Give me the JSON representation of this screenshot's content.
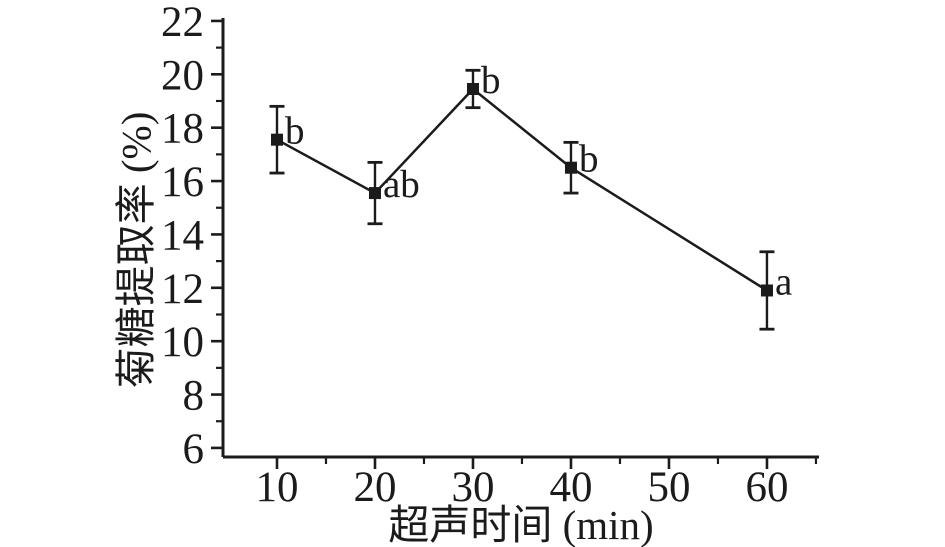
{
  "chart_data": {
    "type": "line",
    "title": "",
    "xlabel": "超声时间 (min)",
    "ylabel": "菊糖提取率 (%)",
    "x": [
      10,
      20,
      30,
      40,
      60
    ],
    "y": [
      17.55,
      15.55,
      19.45,
      16.5,
      11.9
    ],
    "yerr": [
      1.25,
      1.15,
      0.7,
      0.95,
      1.45
    ],
    "point_labels": [
      "b",
      "ab",
      "b",
      "b",
      "a"
    ],
    "xlim": [
      4.49,
      65.31
    ],
    "ylim": [
      5.66,
      22.11
    ],
    "x_major_ticks": [
      10,
      20,
      30,
      40,
      50,
      60
    ],
    "x_minor_ticks": [
      15,
      25,
      35,
      45,
      55,
      65
    ],
    "y_major_ticks": [
      6,
      8,
      10,
      12,
      14,
      16,
      18,
      20,
      22
    ],
    "y_minor_ticks": [
      7,
      9,
      11,
      13,
      15,
      17,
      19,
      21
    ],
    "marker": "filled-square",
    "line_color": "#1b1b1b",
    "background_color": "#ffffff",
    "grid": false,
    "legend_position": "none"
  }
}
